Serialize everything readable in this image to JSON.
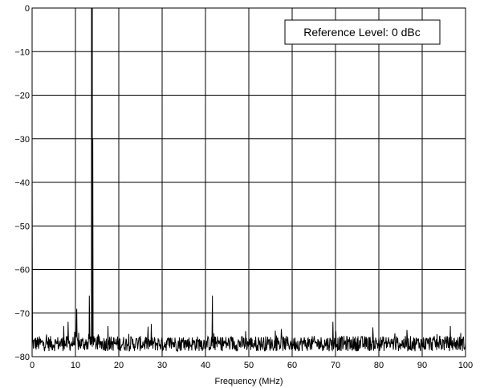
{
  "chart_data": {
    "type": "line",
    "title": "",
    "xlabel": "Frequency (MHz)",
    "ylabel": "",
    "xlim": [
      0,
      100
    ],
    "ylim": [
      -80,
      0
    ],
    "xticks": [
      0,
      10,
      20,
      30,
      40,
      50,
      60,
      70,
      80,
      90,
      100
    ],
    "yticks": [
      0,
      -10,
      -20,
      -30,
      -40,
      -50,
      -60,
      -70,
      -80
    ],
    "xtick_labels": [
      "0",
      "10",
      "20",
      "30",
      "40",
      "50",
      "60",
      "70",
      "80",
      "90",
      "100"
    ],
    "ytick_labels": [
      "0",
      "−10",
      "−20",
      "−30",
      "−40",
      "−50",
      "−60",
      "−70",
      "−80"
    ],
    "grid": true,
    "annotation": "Reference Level: 0 dBc",
    "noise_floor": -77,
    "peaks": [
      {
        "x": 0,
        "y": -35
      },
      {
        "x": 7.3,
        "y": -73
      },
      {
        "x": 8.3,
        "y": -72
      },
      {
        "x": 10.3,
        "y": -69
      },
      {
        "x": 13.2,
        "y": -66
      },
      {
        "x": 13.8,
        "y": 0
      },
      {
        "x": 14.0,
        "y": -30
      },
      {
        "x": 17.5,
        "y": -73
      },
      {
        "x": 27.5,
        "y": -72.5
      },
      {
        "x": 41.6,
        "y": -66
      },
      {
        "x": 69.4,
        "y": -72
      },
      {
        "x": 96.5,
        "y": -73
      }
    ],
    "line_color": "#000000"
  }
}
